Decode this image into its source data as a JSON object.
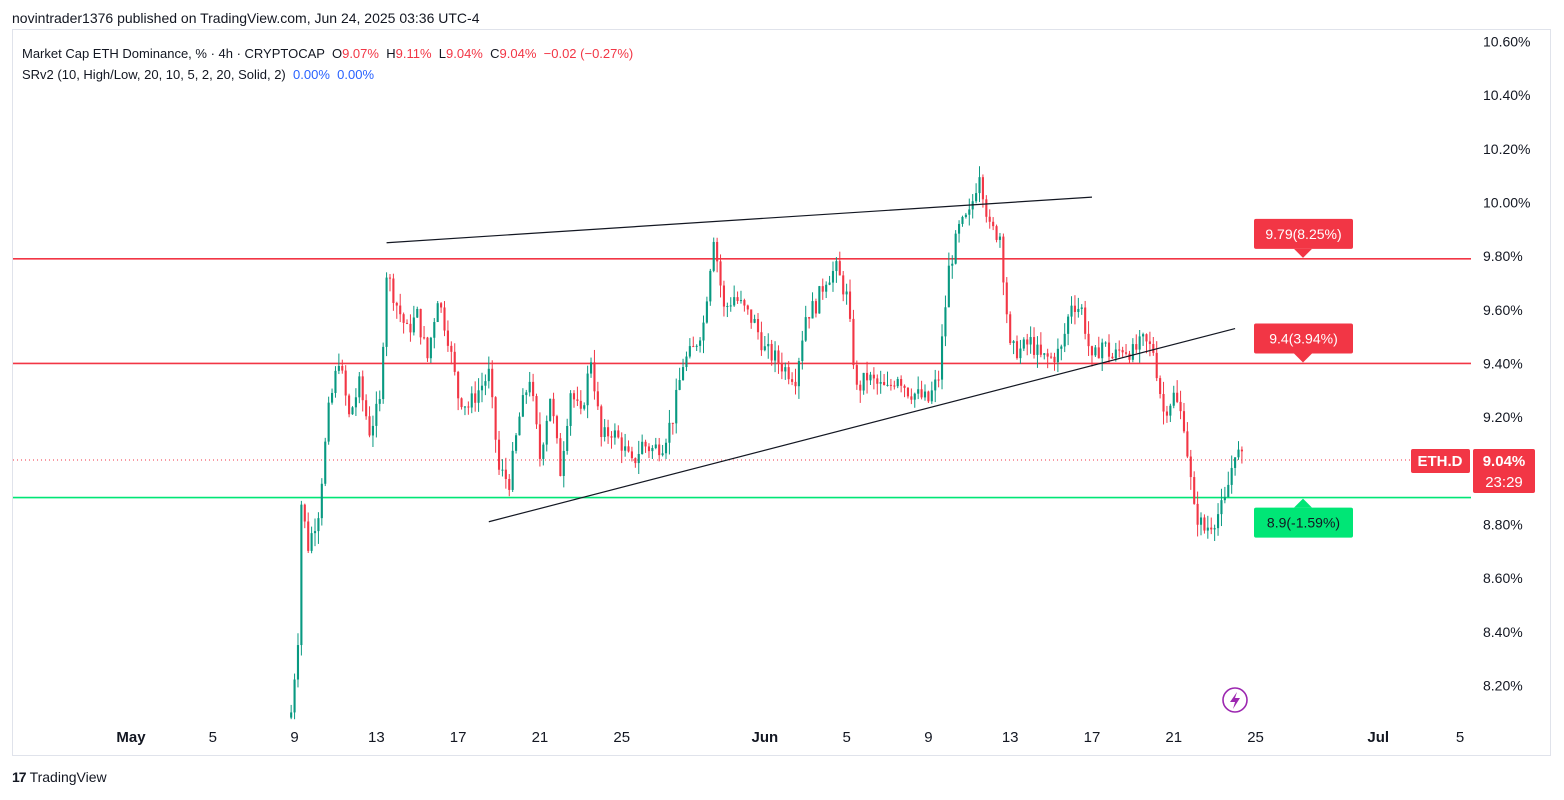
{
  "header": {
    "published": "novintrader1376 published on TradingView.com, Jun 24, 2025 03:36 UTC-4"
  },
  "legend": {
    "title": "Market Cap ETH Dominance, % · 4h · CRYPTOCAP",
    "o_label": "O",
    "o_value": "9.07%",
    "h_label": "H",
    "h_value": "9.11%",
    "l_label": "L",
    "l_value": "9.04%",
    "c_label": "C",
    "c_value": "9.04%",
    "change": "−0.02 (−0.27%)",
    "indicator": "SRv2 (10, High/Low, 20, 10, 5, 2, 20, Solid, 2)",
    "ind_v1": "0.00%",
    "ind_v2": "0.00%"
  },
  "footer": {
    "brand": "TradingView",
    "logo": "17"
  },
  "colors": {
    "up": "#089981",
    "down": "#f23645",
    "support": "#00e676",
    "resistance": "#f23645",
    "trend": "#131722"
  },
  "chart_data": {
    "type": "candlestick",
    "symbol_tag": "ETH.D",
    "last_price": "9.04%",
    "countdown": "23:29",
    "ylim": [
      8.1,
      10.65
    ],
    "y_ticks": [
      "10.60%",
      "10.40%",
      "10.20%",
      "10.00%",
      "9.80%",
      "9.60%",
      "9.40%",
      "9.20%",
      "9.00%",
      "8.80%",
      "8.60%",
      "8.40%",
      "8.20%"
    ],
    "y_tick_values": [
      10.6,
      10.4,
      10.2,
      10.0,
      9.8,
      9.6,
      9.4,
      9.2,
      9.0,
      8.8,
      8.6,
      8.4,
      8.2
    ],
    "x_ticks": [
      {
        "label": "May",
        "date": "2025-05-01",
        "bold": true
      },
      {
        "label": "5",
        "date": "2025-05-05"
      },
      {
        "label": "9",
        "date": "2025-05-09"
      },
      {
        "label": "13",
        "date": "2025-05-13"
      },
      {
        "label": "17",
        "date": "2025-05-17"
      },
      {
        "label": "21",
        "date": "2025-05-21"
      },
      {
        "label": "25",
        "date": "2025-05-25"
      },
      {
        "label": "Jun",
        "date": "2025-06-01",
        "bold": true
      },
      {
        "label": "5",
        "date": "2025-06-05"
      },
      {
        "label": "9",
        "date": "2025-06-09"
      },
      {
        "label": "13",
        "date": "2025-06-13"
      },
      {
        "label": "17",
        "date": "2025-06-17"
      },
      {
        "label": "21",
        "date": "2025-06-21"
      },
      {
        "label": "25",
        "date": "2025-06-25"
      },
      {
        "label": "Jul",
        "date": "2025-07-01",
        "bold": true
      },
      {
        "label": "5",
        "date": "2025-07-05"
      }
    ],
    "candle_interval": "4h",
    "candles_start": "2025-05-08T20:00",
    "close_path": [
      [
        "2025-05-08T20:00",
        8.1
      ],
      [
        "2025-05-09T04:00",
        8.38
      ],
      [
        "2025-05-09T08:00",
        8.88
      ],
      [
        "2025-05-09T16:00",
        8.72
      ],
      [
        "2025-05-10T04:00",
        8.85
      ],
      [
        "2025-05-10T16:00",
        9.22
      ],
      [
        "2025-05-11T04:00",
        9.42
      ],
      [
        "2025-05-11T16:00",
        9.2
      ],
      [
        "2025-05-12T04:00",
        9.32
      ],
      [
        "2025-05-12T16:00",
        9.15
      ],
      [
        "2025-05-13T04:00",
        9.25
      ],
      [
        "2025-05-13T12:00",
        9.74
      ],
      [
        "2025-05-14T00:00",
        9.62
      ],
      [
        "2025-05-14T12:00",
        9.52
      ],
      [
        "2025-05-15T00:00",
        9.58
      ],
      [
        "2025-05-15T12:00",
        9.42
      ],
      [
        "2025-05-16T00:00",
        9.65
      ],
      [
        "2025-05-16T12:00",
        9.5
      ],
      [
        "2025-05-17T00:00",
        9.28
      ],
      [
        "2025-05-17T12:00",
        9.24
      ],
      [
        "2025-05-18T00:00",
        9.3
      ],
      [
        "2025-05-18T12:00",
        9.36
      ],
      [
        "2025-05-19T00:00",
        9.0
      ],
      [
        "2025-05-19T12:00",
        8.96
      ],
      [
        "2025-05-20T00:00",
        9.2
      ],
      [
        "2025-05-20T12:00",
        9.35
      ],
      [
        "2025-05-21T00:00",
        9.05
      ],
      [
        "2025-05-21T12:00",
        9.28
      ],
      [
        "2025-05-22T00:00",
        9.0
      ],
      [
        "2025-05-22T12:00",
        9.3
      ],
      [
        "2025-05-23T00:00",
        9.2
      ],
      [
        "2025-05-23T12:00",
        9.42
      ],
      [
        "2025-05-24T00:00",
        9.12
      ],
      [
        "2025-05-24T12:00",
        9.15
      ],
      [
        "2025-05-25T00:00",
        9.1
      ],
      [
        "2025-05-25T12:00",
        9.02
      ],
      [
        "2025-05-26T00:00",
        9.1
      ],
      [
        "2025-05-26T12:00",
        9.08
      ],
      [
        "2025-05-27T00:00",
        9.1
      ],
      [
        "2025-05-27T12:00",
        9.2
      ],
      [
        "2025-05-28T00:00",
        9.4
      ],
      [
        "2025-05-28T12:00",
        9.45
      ],
      [
        "2025-05-29T00:00",
        9.55
      ],
      [
        "2025-05-29T12:00",
        9.88
      ],
      [
        "2025-05-30T00:00",
        9.6
      ],
      [
        "2025-05-30T12:00",
        9.65
      ],
      [
        "2025-05-31T00:00",
        9.6
      ],
      [
        "2025-05-31T12:00",
        9.55
      ],
      [
        "2025-06-01T00:00",
        9.45
      ],
      [
        "2025-06-01T12:00",
        9.42
      ],
      [
        "2025-06-02T00:00",
        9.38
      ],
      [
        "2025-06-02T12:00",
        9.35
      ],
      [
        "2025-06-03T00:00",
        9.58
      ],
      [
        "2025-06-03T12:00",
        9.62
      ],
      [
        "2025-06-04T00:00",
        9.72
      ],
      [
        "2025-06-04T12:00",
        9.75
      ],
      [
        "2025-06-05T00:00",
        9.65
      ],
      [
        "2025-06-05T12:00",
        9.3
      ],
      [
        "2025-06-06T00:00",
        9.35
      ],
      [
        "2025-06-06T12:00",
        9.32
      ],
      [
        "2025-06-07T00:00",
        9.3
      ],
      [
        "2025-06-07T12:00",
        9.36
      ],
      [
        "2025-06-08T00:00",
        9.3
      ],
      [
        "2025-06-08T12:00",
        9.28
      ],
      [
        "2025-06-09T00:00",
        9.26
      ],
      [
        "2025-06-09T12:00",
        9.35
      ],
      [
        "2025-06-10T00:00",
        9.75
      ],
      [
        "2025-06-10T12:00",
        9.9
      ],
      [
        "2025-06-11T00:00",
        9.95
      ],
      [
        "2025-06-11T12:00",
        10.12
      ],
      [
        "2025-06-12T00:00",
        9.9
      ],
      [
        "2025-06-12T12:00",
        9.88
      ],
      [
        "2025-06-13T00:00",
        9.45
      ],
      [
        "2025-06-13T12:00",
        9.45
      ],
      [
        "2025-06-14T00:00",
        9.48
      ],
      [
        "2025-06-14T12:00",
        9.42
      ],
      [
        "2025-06-15T00:00",
        9.42
      ],
      [
        "2025-06-15T12:00",
        9.45
      ],
      [
        "2025-06-16T00:00",
        9.63
      ],
      [
        "2025-06-16T12:00",
        9.6
      ],
      [
        "2025-06-17T00:00",
        9.4
      ],
      [
        "2025-06-17T12:00",
        9.48
      ],
      [
        "2025-06-18T00:00",
        9.42
      ],
      [
        "2025-06-18T12:00",
        9.46
      ],
      [
        "2025-06-19T00:00",
        9.44
      ],
      [
        "2025-06-19T12:00",
        9.48
      ],
      [
        "2025-06-20T00:00",
        9.45
      ],
      [
        "2025-06-20T12:00",
        9.22
      ],
      [
        "2025-06-21T00:00",
        9.28
      ],
      [
        "2025-06-21T12:00",
        9.18
      ],
      [
        "2025-06-22T00:00",
        8.85
      ],
      [
        "2025-06-22T12:00",
        8.78
      ],
      [
        "2025-06-23T00:00",
        8.82
      ],
      [
        "2025-06-23T12:00",
        8.88
      ],
      [
        "2025-06-24T00:00",
        9.08
      ],
      [
        "2025-06-24T08:00",
        9.04
      ]
    ],
    "horizontal_levels": [
      {
        "value": 9.79,
        "label": "9.79(8.25%)",
        "kind": "resistance"
      },
      {
        "value": 9.4,
        "label": "9.4(3.94%)",
        "kind": "resistance"
      },
      {
        "value": 8.9,
        "label": "8.9(-1.59%)",
        "kind": "support"
      }
    ],
    "trendlines": [
      {
        "from": [
          "2025-05-13T12:00",
          9.85
        ],
        "to": [
          "2025-06-17T00:00",
          10.02
        ]
      },
      {
        "from": [
          "2025-05-18T12:00",
          8.81
        ],
        "to": [
          "2025-06-24T00:00",
          9.53
        ]
      }
    ]
  }
}
